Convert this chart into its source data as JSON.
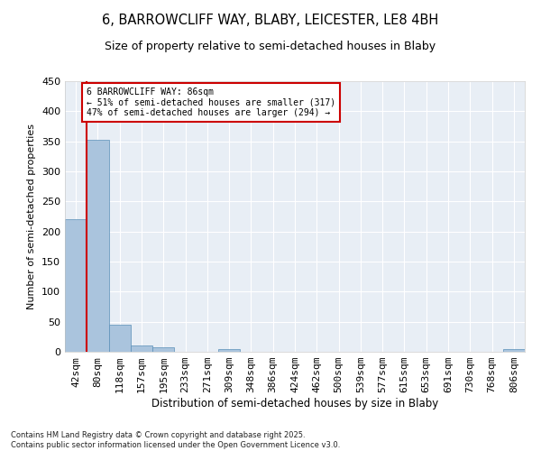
{
  "title_line1": "6, BARROWCLIFF WAY, BLABY, LEICESTER, LE8 4BH",
  "title_line2": "Size of property relative to semi-detached houses in Blaby",
  "xlabel": "Distribution of semi-detached houses by size in Blaby",
  "ylabel": "Number of semi-detached properties",
  "bar_labels": [
    "42sqm",
    "80sqm",
    "118sqm",
    "157sqm",
    "195sqm",
    "233sqm",
    "271sqm",
    "309sqm",
    "348sqm",
    "386sqm",
    "424sqm",
    "462sqm",
    "500sqm",
    "539sqm",
    "577sqm",
    "615sqm",
    "653sqm",
    "691sqm",
    "730sqm",
    "768sqm",
    "806sqm"
  ],
  "bar_values": [
    220,
    352,
    45,
    10,
    7,
    0,
    0,
    4,
    0,
    0,
    0,
    0,
    0,
    0,
    0,
    0,
    0,
    0,
    0,
    0,
    4
  ],
  "bar_color": "#aac4dd",
  "bar_edgecolor": "#5a90b8",
  "vline_color": "#cc0000",
  "vline_x": 0.5,
  "annotation_box_color": "#cc0000",
  "ylim": [
    0,
    450
  ],
  "yticks": [
    0,
    50,
    100,
    150,
    200,
    250,
    300,
    350,
    400,
    450
  ],
  "background_color": "#e8eef5",
  "footer_line1": "Contains HM Land Registry data © Crown copyright and database right 2025.",
  "footer_line2": "Contains public sector information licensed under the Open Government Licence v3.0.",
  "annotation_text": "6 BARROWCLIFF WAY: 86sqm\n← 51% of semi-detached houses are smaller (317)\n47% of semi-detached houses are larger (294) →"
}
